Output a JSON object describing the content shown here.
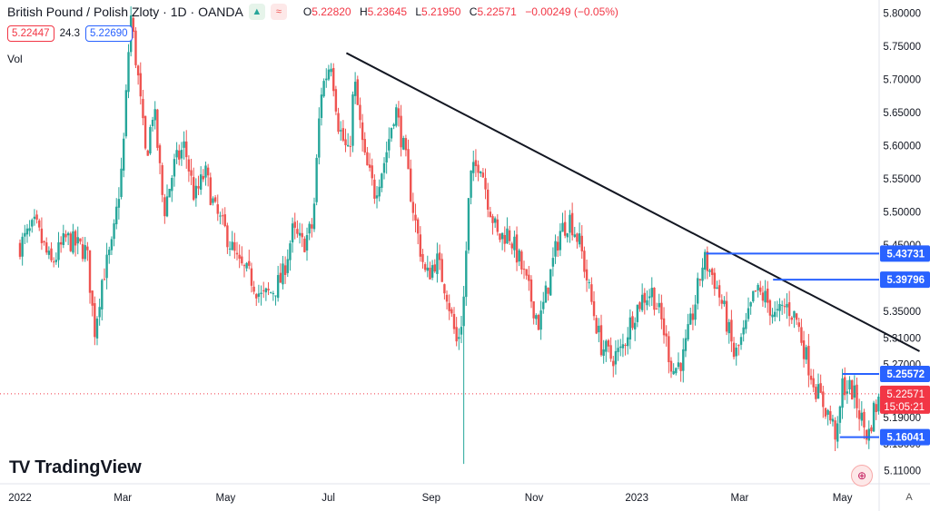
{
  "header": {
    "symbol": "British Pound / Polish Zloty · 1D · OANDA",
    "icon_up": "up-arrow-icon",
    "icon_compare": "compare-icon",
    "o_label": "O",
    "o_value": "5.22820",
    "h_label": "H",
    "h_value": "5.23645",
    "l_label": "L",
    "l_value": "5.21950",
    "c_label": "C",
    "c_value": "5.22571",
    "change": "−0.00249 (−0.05%)"
  },
  "quotes": {
    "sell": "5.22447",
    "spread": "24.3",
    "buy": "5.22690"
  },
  "volume_label": "Vol",
  "logo_text": "TradingView",
  "colors": {
    "up": "#26a69a",
    "down": "#ef5350",
    "level_line": "#2962ff",
    "trendline": "#131722",
    "price_label": "#f23645"
  },
  "chart_data": {
    "type": "candlestick",
    "ylim": [
      5.09,
      5.82
    ],
    "y_ticks": [
      "5.80000",
      "5.75000",
      "5.70000",
      "5.65000",
      "5.60000",
      "5.55000",
      "5.50000",
      "5.45000",
      "5.40000",
      "5.35000",
      "5.31000",
      "5.27000",
      "5.23000",
      "5.19000",
      "5.15000",
      "5.11000"
    ],
    "x_ticks": [
      {
        "label": "2022",
        "month": 0
      },
      {
        "label": "Mar",
        "month": 2
      },
      {
        "label": "May",
        "month": 4
      },
      {
        "label": "Jul",
        "month": 6
      },
      {
        "label": "Sep",
        "month": 8
      },
      {
        "label": "Nov",
        "month": 10
      },
      {
        "label": "2023",
        "month": 12
      },
      {
        "label": "Mar",
        "month": 14
      },
      {
        "label": "May",
        "month": 16
      }
    ],
    "series_knots": [
      [
        0,
        5.45
      ],
      [
        0.3,
        5.48
      ],
      [
        0.6,
        5.42
      ],
      [
        0.9,
        5.46
      ],
      [
        1.3,
        5.44
      ],
      [
        1.45,
        5.32
      ],
      [
        1.6,
        5.4
      ],
      [
        1.8,
        5.45
      ],
      [
        2.0,
        5.58
      ],
      [
        2.15,
        5.8
      ],
      [
        2.3,
        5.7
      ],
      [
        2.45,
        5.58
      ],
      [
        2.6,
        5.66
      ],
      [
        2.8,
        5.5
      ],
      [
        3.0,
        5.57
      ],
      [
        3.2,
        5.6
      ],
      [
        3.4,
        5.52
      ],
      [
        3.6,
        5.56
      ],
      [
        3.8,
        5.5
      ],
      [
        4.0,
        5.47
      ],
      [
        4.25,
        5.42
      ],
      [
        4.5,
        5.4
      ],
      [
        4.7,
        5.37
      ],
      [
        4.9,
        5.38
      ],
      [
        5.1,
        5.4
      ],
      [
        5.3,
        5.47
      ],
      [
        5.5,
        5.45
      ],
      [
        5.7,
        5.48
      ],
      [
        5.85,
        5.68
      ],
      [
        6.05,
        5.73
      ],
      [
        6.2,
        5.63
      ],
      [
        6.4,
        5.58
      ],
      [
        6.5,
        5.7
      ],
      [
        6.7,
        5.58
      ],
      [
        6.9,
        5.53
      ],
      [
        7.1,
        5.58
      ],
      [
        7.3,
        5.66
      ],
      [
        7.5,
        5.58
      ],
      [
        7.7,
        5.48
      ],
      [
        7.9,
        5.4
      ],
      [
        8.1,
        5.43
      ],
      [
        8.3,
        5.38
      ],
      [
        8.5,
        5.3
      ],
      [
        8.62,
        5.35
      ],
      [
        8.75,
        5.55
      ],
      [
        8.95,
        5.58
      ],
      [
        9.1,
        5.52
      ],
      [
        9.3,
        5.46
      ],
      [
        9.5,
        5.47
      ],
      [
        9.7,
        5.43
      ],
      [
        9.9,
        5.38
      ],
      [
        10.1,
        5.33
      ],
      [
        10.3,
        5.4
      ],
      [
        10.5,
        5.47
      ],
      [
        10.7,
        5.49
      ],
      [
        10.9,
        5.45
      ],
      [
        11.1,
        5.37
      ],
      [
        11.3,
        5.3
      ],
      [
        11.5,
        5.28
      ],
      [
        11.7,
        5.29
      ],
      [
        11.9,
        5.34
      ],
      [
        12.1,
        5.37
      ],
      [
        12.3,
        5.38
      ],
      [
        12.5,
        5.33
      ],
      [
        12.7,
        5.26
      ],
      [
        12.9,
        5.28
      ],
      [
        13.1,
        5.35
      ],
      [
        13.3,
        5.43
      ],
      [
        13.5,
        5.4
      ],
      [
        13.7,
        5.35
      ],
      [
        13.9,
        5.28
      ],
      [
        14.1,
        5.32
      ],
      [
        14.3,
        5.38
      ],
      [
        14.5,
        5.37
      ],
      [
        14.7,
        5.34
      ],
      [
        14.9,
        5.36
      ],
      [
        15.1,
        5.34
      ],
      [
        15.3,
        5.28
      ],
      [
        15.5,
        5.23
      ],
      [
        15.7,
        5.2
      ],
      [
        15.9,
        5.16
      ],
      [
        16.0,
        5.24
      ],
      [
        16.2,
        5.23
      ],
      [
        16.4,
        5.18
      ],
      [
        16.5,
        5.16
      ],
      [
        16.6,
        5.2
      ],
      [
        16.75,
        5.22
      ]
    ],
    "n_candles": 358,
    "last_close": 5.22571,
    "last_price_label": "5.22571",
    "countdown_label": "15:05:21",
    "trendline": {
      "start": {
        "month": 6.35,
        "price": 5.74
      },
      "end": {
        "month": 17.5,
        "price": 5.29
      }
    },
    "levels": [
      {
        "label": "5.43731",
        "price": 5.43731,
        "from_month": 13.35
      },
      {
        "label": "5.39796",
        "price": 5.39796,
        "from_month": 14.65
      },
      {
        "label": "5.25572",
        "price": 5.25572,
        "from_month": 16.0
      },
      {
        "label": "5.16041",
        "price": 5.16041,
        "from_month": 15.95
      }
    ]
  }
}
